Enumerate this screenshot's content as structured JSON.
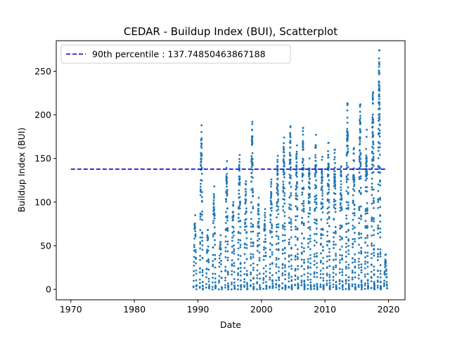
{
  "chart_data": {
    "type": "scatter",
    "title": "CEDAR - Buildup Index (BUI), Scatterplot",
    "xlabel": "Date",
    "ylabel": "Buildup Index (BUI)",
    "xlim": [
      1967.7,
      2022.6
    ],
    "ylim": [
      -12,
      285
    ],
    "x_ticks": [
      1970,
      1980,
      1990,
      2000,
      2010,
      2020
    ],
    "y_ticks": [
      0,
      50,
      100,
      150,
      200,
      250
    ],
    "grid": false,
    "legend": {
      "placement": "top-left",
      "entries": [
        "90th percentile : 137.74850463867188"
      ]
    },
    "reference_line": {
      "label": "90th percentile : 137.74850463867188",
      "y": 137.74850463867188,
      "x_range": [
        1970,
        2019.5
      ],
      "color": "#0000cc",
      "style": "dashed"
    },
    "series_color": "#1f77b4",
    "seasons": [
      {
        "year": 1989,
        "peak": 85
      },
      {
        "year": 1990,
        "peak": 188
      },
      {
        "year": 1991,
        "peak": 68
      },
      {
        "year": 1992,
        "peak": 118
      },
      {
        "year": 1993,
        "peak": 62
      },
      {
        "year": 1994,
        "peak": 147
      },
      {
        "year": 1995,
        "peak": 100
      },
      {
        "year": 1996,
        "peak": 154
      },
      {
        "year": 1997,
        "peak": 124
      },
      {
        "year": 1998,
        "peak": 192
      },
      {
        "year": 1999,
        "peak": 105
      },
      {
        "year": 2000,
        "peak": 92
      },
      {
        "year": 2001,
        "peak": 126
      },
      {
        "year": 2002,
        "peak": 153
      },
      {
        "year": 2003,
        "peak": 174
      },
      {
        "year": 2004,
        "peak": 187
      },
      {
        "year": 2005,
        "peak": 165
      },
      {
        "year": 2006,
        "peak": 185
      },
      {
        "year": 2007,
        "peak": 150
      },
      {
        "year": 2008,
        "peak": 177
      },
      {
        "year": 2009,
        "peak": 152
      },
      {
        "year": 2010,
        "peak": 168
      },
      {
        "year": 2011,
        "peak": 160
      },
      {
        "year": 2012,
        "peak": 141
      },
      {
        "year": 2013,
        "peak": 213
      },
      {
        "year": 2014,
        "peak": 162
      },
      {
        "year": 2015,
        "peak": 212
      },
      {
        "year": 2016,
        "peak": 183
      },
      {
        "year": 2017,
        "peak": 226
      },
      {
        "year": 2018,
        "peak": 274
      },
      {
        "year": 2019,
        "peak": 40
      }
    ]
  }
}
